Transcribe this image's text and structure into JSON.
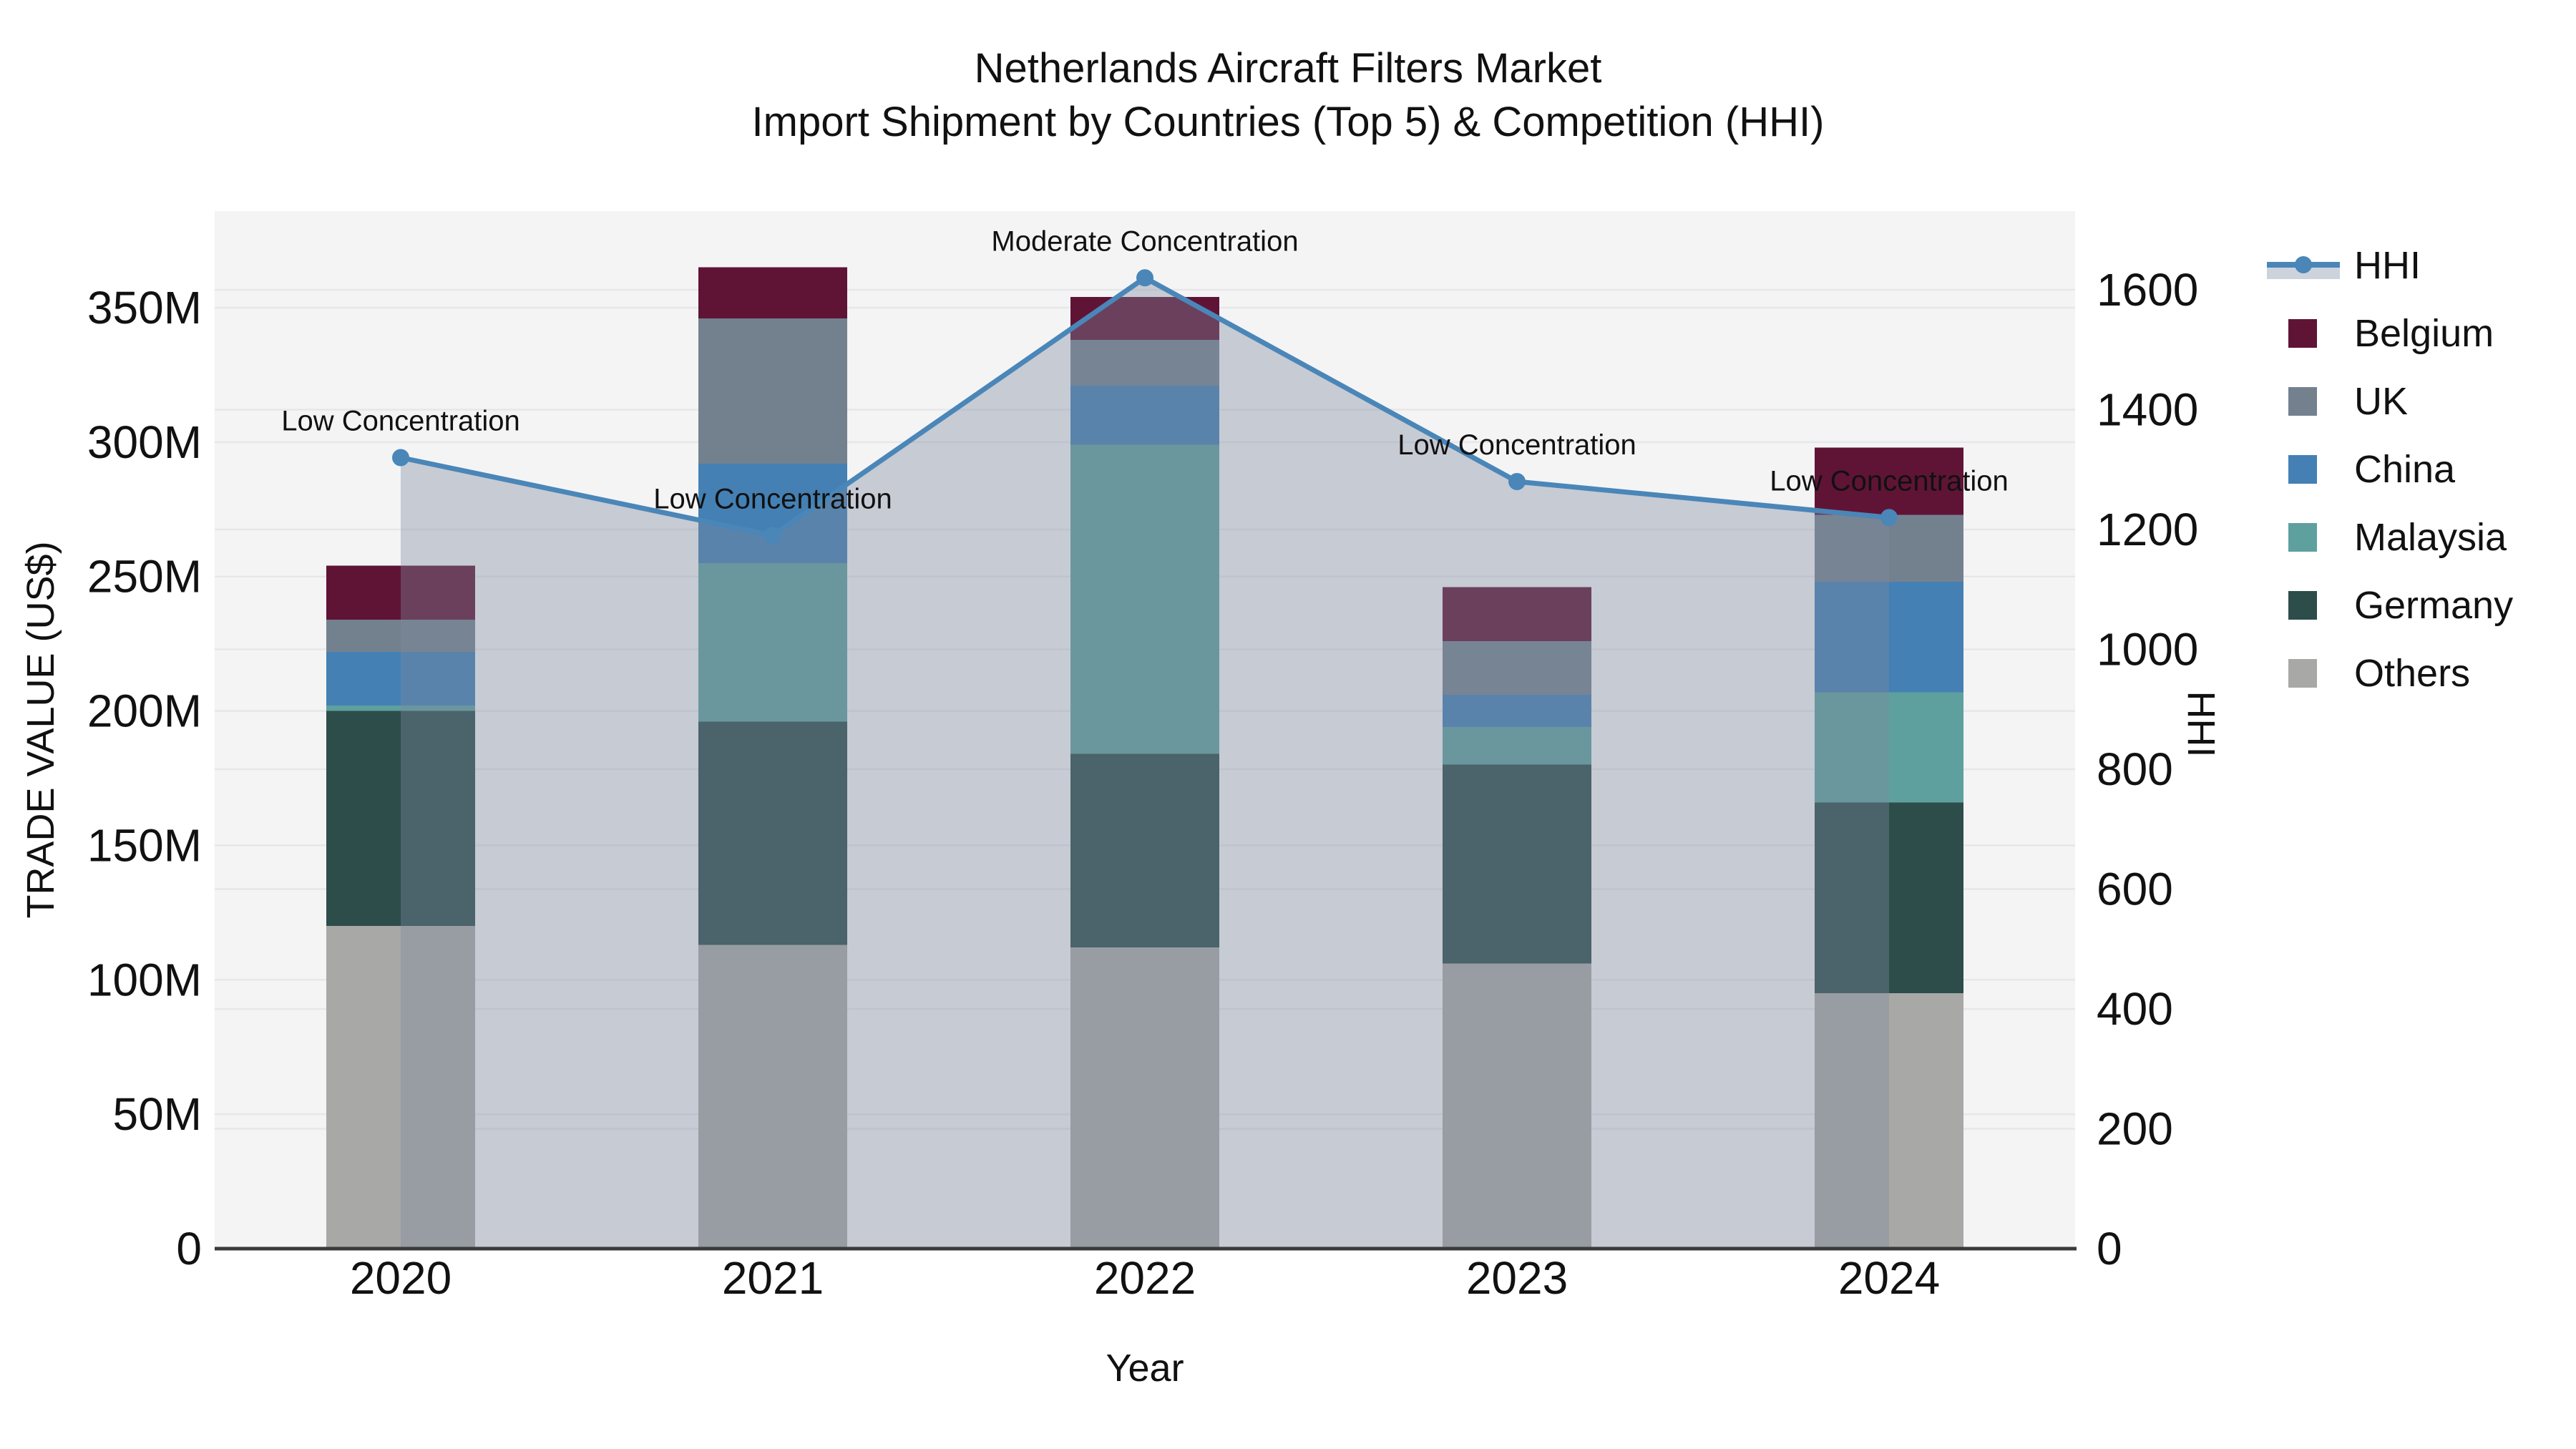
{
  "figure": {
    "title_line1": "Netherlands Aircraft Filters Market",
    "title_line2": "Import Shipment by Countries (Top 5) & Competition (HHI)"
  },
  "axes": {
    "y_left_label": "TRADE VALUE (US$)",
    "y_right_label": "HHI",
    "x_label": "Year",
    "y_left_ticks": [
      "0",
      "50M",
      "100M",
      "150M",
      "200M",
      "250M",
      "300M",
      "350M"
    ],
    "y_right_ticks": [
      "0",
      "200",
      "400",
      "600",
      "800",
      "1000",
      "1200",
      "1400",
      "1600"
    ]
  },
  "chart_data": {
    "type": "bar",
    "stacked": true,
    "title": "Netherlands Aircraft Filters Market — Import Shipment by Countries (Top 5) & Competition (HHI)",
    "categories": [
      "2020",
      "2021",
      "2022",
      "2023",
      "2024"
    ],
    "unit": "USD millions",
    "series": [
      {
        "name": "Others",
        "color": "#a8a8a6",
        "values": [
          120,
          113,
          112,
          106,
          95
        ]
      },
      {
        "name": "Germany",
        "color": "#2d4d4b",
        "values": [
          80,
          83,
          72,
          74,
          71
        ]
      },
      {
        "name": "Malaysia",
        "color": "#5ea09e",
        "values": [
          2,
          59,
          115,
          14,
          41
        ]
      },
      {
        "name": "China",
        "color": "#4480b4",
        "values": [
          20,
          37,
          22,
          12,
          41
        ]
      },
      {
        "name": "UK",
        "color": "#73818f",
        "values": [
          12,
          54,
          17,
          20,
          25
        ]
      },
      {
        "name": "Belgium",
        "color": "#5f1436",
        "values": [
          20,
          19,
          16,
          20,
          25
        ]
      }
    ],
    "overlay": {
      "type": "line",
      "name": "HHI",
      "axis": "right",
      "values": [
        1320,
        1190,
        1620,
        1280,
        1220
      ],
      "color": "#4a86b8",
      "area_fill": "rgba(125,136,158,0.38)",
      "legend_band": "#cdd3dc"
    },
    "annotations": [
      {
        "category": "2020",
        "text": "Low Concentration"
      },
      {
        "category": "2021",
        "text": "Low Concentration"
      },
      {
        "category": "2022",
        "text": "Moderate Concentration"
      },
      {
        "category": "2023",
        "text": "Low Concentration"
      },
      {
        "category": "2024",
        "text": "Low Concentration"
      }
    ],
    "y_left": {
      "label": "TRADE VALUE (US$)",
      "min": 0,
      "max": 350,
      "step": 50,
      "tick_suffix": "M"
    },
    "y_right": {
      "label": "HHI",
      "min": 0,
      "max": 1600,
      "step": 200
    },
    "legend": [
      "HHI",
      "Belgium",
      "UK",
      "China",
      "Malaysia",
      "Germany",
      "Others"
    ],
    "layout_hints": {
      "plot_bg": "#f4f4f5",
      "grid_color": "#e7e7ea",
      "axis_line_color": "#3a3a3a",
      "grid": "on",
      "legend_position": "right"
    }
  }
}
